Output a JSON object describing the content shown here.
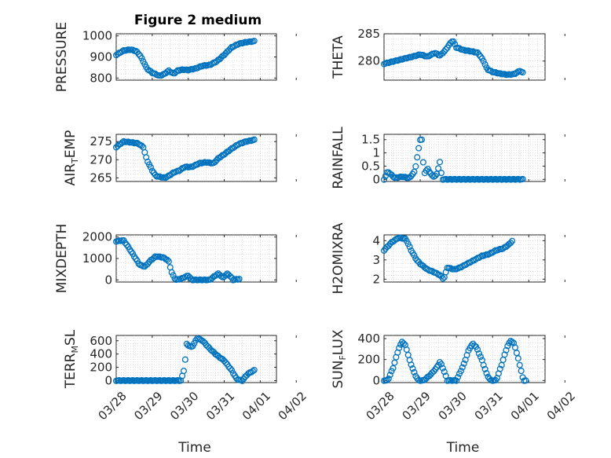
{
  "title": "Figure 2 medium",
  "colors": {
    "marker": "#0072BD",
    "axis": "#262626",
    "grid": "#c8c8c8"
  },
  "chart_data": [
    {
      "type": "scatter",
      "ylabel": "PRESSURE",
      "ylim": [
        790,
        1010
      ],
      "yticks": [
        800,
        900,
        1000
      ],
      "ytick_labels": [
        "800",
        "900",
        "1000"
      ],
      "xticks": [
        "03/28",
        "03/29",
        "03/30",
        "03/31",
        "04/01",
        "04/02"
      ],
      "xtick_labels_visible": false,
      "x_days": [
        0,
        4.45
      ],
      "grid": true,
      "key_values": [
        [
          0,
          910
        ],
        [
          0.2,
          930
        ],
        [
          0.4,
          935
        ],
        [
          0.55,
          928
        ],
        [
          0.65,
          910
        ],
        [
          0.75,
          880
        ],
        [
          0.85,
          845
        ],
        [
          1.0,
          825
        ],
        [
          1.1,
          818
        ],
        [
          1.2,
          810
        ],
        [
          1.35,
          820
        ],
        [
          1.45,
          835
        ],
        [
          1.6,
          820
        ],
        [
          1.7,
          835
        ],
        [
          1.85,
          840
        ],
        [
          2.0,
          838
        ],
        [
          2.2,
          845
        ],
        [
          2.4,
          858
        ],
        [
          2.6,
          862
        ],
        [
          2.8,
          880
        ],
        [
          3.0,
          910
        ],
        [
          3.2,
          945
        ],
        [
          3.4,
          962
        ],
        [
          3.6,
          970
        ],
        [
          3.85,
          975
        ]
      ]
    },
    {
      "type": "scatter",
      "ylabel": "THETA",
      "ylim": [
        276.5,
        285
      ],
      "yticks": [
        280,
        285
      ],
      "ytick_labels": [
        "280",
        "285"
      ],
      "xticks": [
        "03/28",
        "03/29",
        "03/30",
        "03/31",
        "04/01",
        "04/02"
      ],
      "xtick_labels_visible": false,
      "x_days": [
        0,
        4.45
      ],
      "grid": true,
      "key_values": [
        [
          0,
          279.5
        ],
        [
          0.3,
          280.0
        ],
        [
          0.6,
          280.5
        ],
        [
          0.9,
          281.0
        ],
        [
          1.0,
          281.2
        ],
        [
          1.2,
          280.8
        ],
        [
          1.4,
          281.5
        ],
        [
          1.55,
          281.0
        ],
        [
          1.7,
          282.0
        ],
        [
          1.8,
          283.0
        ],
        [
          1.9,
          283.8
        ],
        [
          2.0,
          282.5
        ],
        [
          2.2,
          282.0
        ],
        [
          2.4,
          281.8
        ],
        [
          2.6,
          281.5
        ],
        [
          2.75,
          280.0
        ],
        [
          2.85,
          278.5
        ],
        [
          3.0,
          278.0
        ],
        [
          3.2,
          277.7
        ],
        [
          3.4,
          277.5
        ],
        [
          3.6,
          277.6
        ],
        [
          3.75,
          278.2
        ],
        [
          3.85,
          277.8
        ]
      ]
    },
    {
      "type": "scatter",
      "ylabel": "AIR",
      "ylabel_sub": "T",
      "ylabel_rest": "EMP",
      "ylim": [
        264,
        277
      ],
      "yticks": [
        265,
        270,
        275
      ],
      "ytick_labels": [
        "265",
        "270",
        "275"
      ],
      "xticks": [
        "03/28",
        "03/29",
        "03/30",
        "03/31",
        "04/01",
        "04/02"
      ],
      "xtick_labels_visible": false,
      "x_days": [
        0,
        4.45
      ],
      "grid": true,
      "key_values": [
        [
          0,
          273.5
        ],
        [
          0.2,
          275
        ],
        [
          0.4,
          274.8
        ],
        [
          0.6,
          274.5
        ],
        [
          0.75,
          273.5
        ],
        [
          0.85,
          270
        ],
        [
          1.0,
          267
        ],
        [
          1.1,
          265.5
        ],
        [
          1.25,
          265.2
        ],
        [
          1.35,
          265.0
        ],
        [
          1.45,
          265.5
        ],
        [
          1.6,
          266.5
        ],
        [
          1.75,
          267.0
        ],
        [
          1.9,
          268.0
        ],
        [
          2.1,
          268.0
        ],
        [
          2.3,
          269.0
        ],
        [
          2.5,
          269.3
        ],
        [
          2.7,
          269.0
        ],
        [
          2.85,
          270.5
        ],
        [
          3.0,
          271.5
        ],
        [
          3.2,
          273.0
        ],
        [
          3.4,
          274.3
        ],
        [
          3.6,
          275.0
        ],
        [
          3.85,
          275.5
        ]
      ]
    },
    {
      "type": "scatter",
      "ylabel": "RAINFALL",
      "ylim": [
        -0.08,
        1.7
      ],
      "yticks": [
        0,
        0.5,
        1,
        1.5
      ],
      "ytick_labels": [
        "0",
        "0.5",
        "1",
        "1.5"
      ],
      "xticks": [
        "03/28",
        "03/29",
        "03/30",
        "03/31",
        "04/01",
        "04/02"
      ],
      "xtick_labels_visible": false,
      "x_days": [
        0,
        4.45
      ],
      "grid": true,
      "key_values": [
        [
          0,
          0
        ],
        [
          0.1,
          0.3
        ],
        [
          0.3,
          0.05
        ],
        [
          0.5,
          0.1
        ],
        [
          0.7,
          0.05
        ],
        [
          0.85,
          0.3
        ],
        [
          1.0,
          1.5
        ],
        [
          1.05,
          1.5
        ],
        [
          1.1,
          0.2
        ],
        [
          1.2,
          0.4
        ],
        [
          1.35,
          0.1
        ],
        [
          1.45,
          0.15
        ],
        [
          1.55,
          0.7
        ],
        [
          1.6,
          0
        ],
        [
          2.0,
          0
        ],
        [
          3.0,
          0
        ],
        [
          3.85,
          0
        ]
      ]
    },
    {
      "type": "scatter",
      "ylabel": "MIXDEPTH",
      "ylim": [
        -100,
        2100
      ],
      "yticks": [
        0,
        1000,
        2000
      ],
      "ytick_labels": [
        "0",
        "1000",
        "2000"
      ],
      "xticks": [
        "03/28",
        "03/29",
        "03/30",
        "03/31",
        "04/01",
        "04/02"
      ],
      "xtick_labels_visible": false,
      "x_days": [
        0,
        4.45
      ],
      "grid": true,
      "key_values": [
        [
          0,
          1800
        ],
        [
          0.2,
          1850
        ],
        [
          0.35,
          1500
        ],
        [
          0.5,
          1100
        ],
        [
          0.65,
          700
        ],
        [
          0.8,
          620
        ],
        [
          0.95,
          900
        ],
        [
          1.1,
          1100
        ],
        [
          1.3,
          1050
        ],
        [
          1.45,
          900
        ],
        [
          1.55,
          300
        ],
        [
          1.65,
          0
        ],
        [
          1.8,
          50
        ],
        [
          2.0,
          200
        ],
        [
          2.1,
          0
        ],
        [
          2.3,
          0
        ],
        [
          2.6,
          0
        ],
        [
          2.75,
          200
        ],
        [
          2.85,
          300
        ],
        [
          2.95,
          100
        ],
        [
          3.1,
          300
        ],
        [
          3.25,
          0
        ],
        [
          3.45,
          50
        ]
      ]
    },
    {
      "type": "scatter",
      "ylabel": "H2OMIXRA",
      "ylim": [
        1.85,
        4.3
      ],
      "yticks": [
        2,
        3,
        4
      ],
      "ytick_labels": [
        "2",
        "3",
        "4"
      ],
      "xticks": [
        "03/28",
        "03/29",
        "03/30",
        "03/31",
        "04/01",
        "04/02"
      ],
      "xtick_labels_visible": false,
      "x_days": [
        0,
        4.45
      ],
      "grid": true,
      "key_values": [
        [
          0,
          3.5
        ],
        [
          0.2,
          3.9
        ],
        [
          0.4,
          4.15
        ],
        [
          0.6,
          4.1
        ],
        [
          0.75,
          3.5
        ],
        [
          0.9,
          3.0
        ],
        [
          1.0,
          2.8
        ],
        [
          1.2,
          2.5
        ],
        [
          1.4,
          2.35
        ],
        [
          1.55,
          2.2
        ],
        [
          1.65,
          2.0
        ],
        [
          1.75,
          2.6
        ],
        [
          1.95,
          2.5
        ],
        [
          2.1,
          2.6
        ],
        [
          2.3,
          2.8
        ],
        [
          2.5,
          3.0
        ],
        [
          2.7,
          3.2
        ],
        [
          2.9,
          3.3
        ],
        [
          3.1,
          3.5
        ],
        [
          3.3,
          3.6
        ],
        [
          3.45,
          3.8
        ],
        [
          3.55,
          4.0
        ]
      ]
    },
    {
      "type": "scatter",
      "ylabel": "TERR",
      "ylabel_sub": "M",
      "ylabel_rest": "SL",
      "ylim": [
        -30,
        680
      ],
      "yticks": [
        0,
        200,
        400,
        600
      ],
      "ytick_labels": [
        "0",
        "200",
        "400",
        "600"
      ],
      "xticks": [
        "03/28",
        "03/29",
        "03/30",
        "03/31",
        "04/01",
        "04/02"
      ],
      "xtick_labels_visible": true,
      "xlabel": "Time",
      "x_days": [
        0,
        4.45
      ],
      "grid": true,
      "key_values": [
        [
          0,
          0
        ],
        [
          0.5,
          0
        ],
        [
          1.0,
          0
        ],
        [
          1.5,
          0
        ],
        [
          1.8,
          0
        ],
        [
          1.9,
          200
        ],
        [
          1.95,
          550
        ],
        [
          2.1,
          500
        ],
        [
          2.25,
          640
        ],
        [
          2.4,
          600
        ],
        [
          2.6,
          480
        ],
        [
          2.8,
          380
        ],
        [
          3.0,
          300
        ],
        [
          3.2,
          160
        ],
        [
          3.35,
          20
        ],
        [
          3.5,
          0
        ],
        [
          3.65,
          100
        ],
        [
          3.85,
          160
        ]
      ]
    },
    {
      "type": "scatter",
      "ylabel": "SUN",
      "ylabel_sub": "F",
      "ylabel_rest": "LUX",
      "ylim": [
        -20,
        430
      ],
      "yticks": [
        0,
        200,
        400
      ],
      "ytick_labels": [
        "0",
        "200",
        "400"
      ],
      "xticks": [
        "03/28",
        "03/29",
        "03/30",
        "03/31",
        "04/01",
        "04/02"
      ],
      "xtick_labels_visible": true,
      "xlabel": "Time",
      "x_days": [
        0,
        4.45
      ],
      "grid": true,
      "key_values": [
        [
          0,
          0
        ],
        [
          0.1,
          0
        ],
        [
          0.25,
          120
        ],
        [
          0.4,
          300
        ],
        [
          0.5,
          370
        ],
        [
          0.6,
          330
        ],
        [
          0.7,
          200
        ],
        [
          0.85,
          60
        ],
        [
          0.95,
          0
        ],
        [
          1.1,
          0
        ],
        [
          1.3,
          60
        ],
        [
          1.45,
          120
        ],
        [
          1.55,
          180
        ],
        [
          1.65,
          100
        ],
        [
          1.75,
          0
        ],
        [
          2.0,
          0
        ],
        [
          2.2,
          150
        ],
        [
          2.35,
          300
        ],
        [
          2.45,
          350
        ],
        [
          2.55,
          320
        ],
        [
          2.7,
          200
        ],
        [
          2.85,
          50
        ],
        [
          2.95,
          0
        ],
        [
          3.1,
          0
        ],
        [
          3.25,
          150
        ],
        [
          3.4,
          320
        ],
        [
          3.5,
          380
        ],
        [
          3.6,
          350
        ],
        [
          3.7,
          220
        ],
        [
          3.8,
          80
        ],
        [
          3.85,
          0
        ],
        [
          3.95,
          0
        ]
      ]
    }
  ]
}
